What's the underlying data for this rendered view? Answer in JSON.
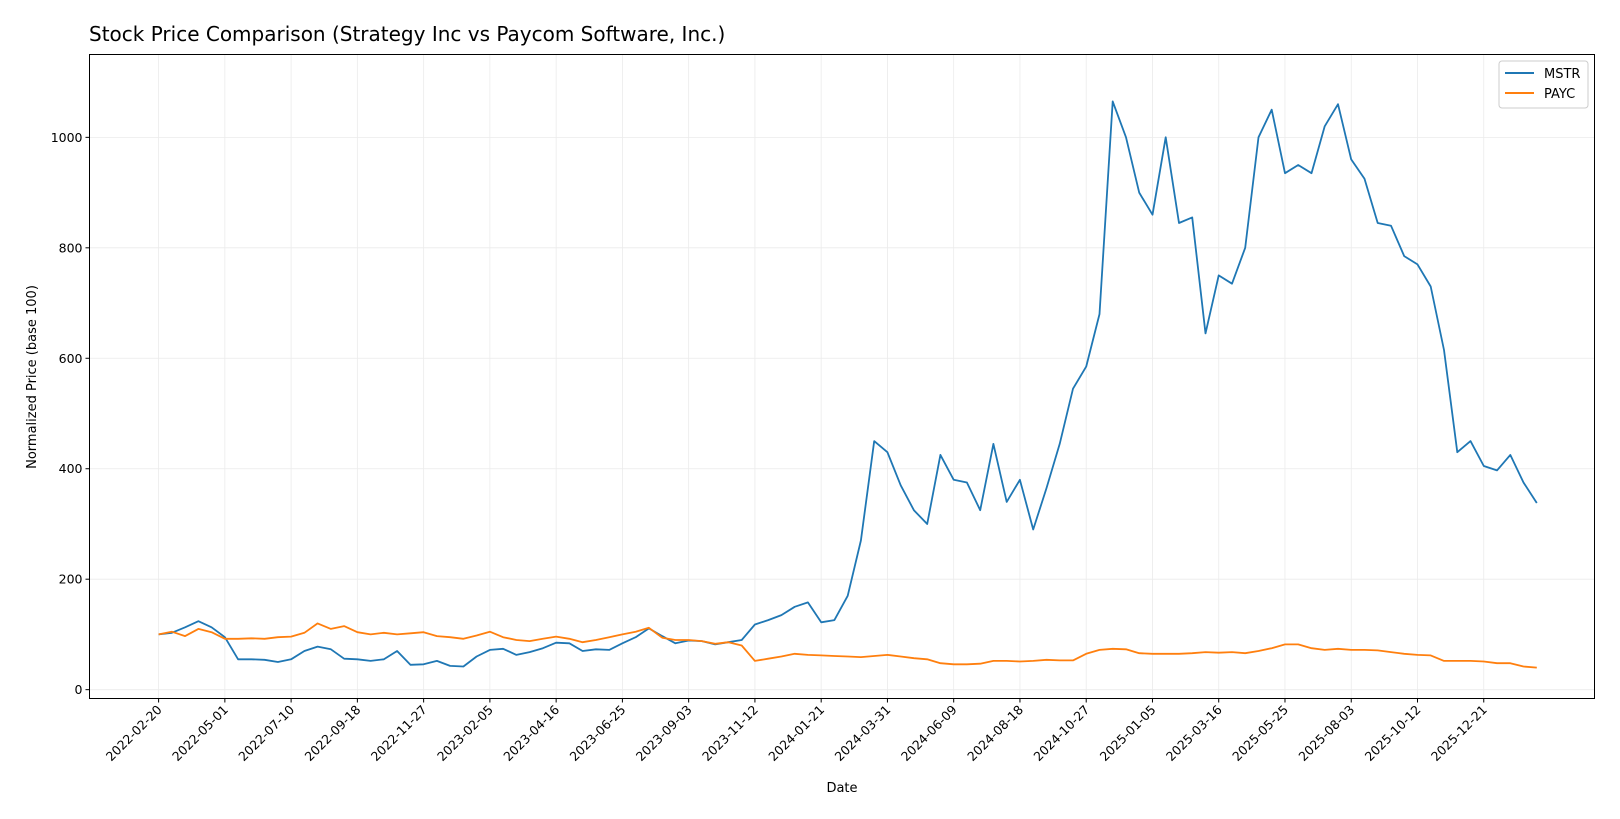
{
  "chart_data": {
    "type": "line",
    "title": "Stock Price Comparison (Strategy Inc vs Paycom Software, Inc.)",
    "xlabel": "Date",
    "ylabel": "Normalized Price (base 100)",
    "ylim": [
      -16,
      1150
    ],
    "yticks": [
      0,
      200,
      400,
      600,
      800,
      1000
    ],
    "xticks": [
      "2022-02-20",
      "2022-05-01",
      "2022-07-10",
      "2022-09-18",
      "2022-11-27",
      "2023-02-05",
      "2023-04-16",
      "2023-06-25",
      "2023-09-03",
      "2023-11-12",
      "2024-01-21",
      "2024-03-31",
      "2024-06-09",
      "2024-08-18",
      "2024-10-27",
      "2025-01-05",
      "2025-03-16",
      "2025-05-25",
      "2025-08-03",
      "2025-10-12",
      "2025-12-21"
    ],
    "grid": true,
    "legend_position": "top-right",
    "x": [
      "2022-02-20",
      "2022-03-06",
      "2022-03-20",
      "2022-04-03",
      "2022-04-17",
      "2022-05-01",
      "2022-05-15",
      "2022-05-29",
      "2022-06-12",
      "2022-06-26",
      "2022-07-10",
      "2022-07-24",
      "2022-08-07",
      "2022-08-21",
      "2022-09-04",
      "2022-09-18",
      "2022-10-02",
      "2022-10-16",
      "2022-10-30",
      "2022-11-13",
      "2022-11-27",
      "2022-12-11",
      "2022-12-25",
      "2023-01-08",
      "2023-01-22",
      "2023-02-05",
      "2023-02-19",
      "2023-03-05",
      "2023-03-19",
      "2023-04-02",
      "2023-04-16",
      "2023-04-30",
      "2023-05-14",
      "2023-05-28",
      "2023-06-11",
      "2023-06-25",
      "2023-07-09",
      "2023-07-23",
      "2023-08-06",
      "2023-08-20",
      "2023-09-03",
      "2023-09-17",
      "2023-10-01",
      "2023-10-15",
      "2023-10-29",
      "2023-11-12",
      "2023-11-26",
      "2023-12-10",
      "2023-12-24",
      "2024-01-07",
      "2024-01-21",
      "2024-02-04",
      "2024-02-18",
      "2024-03-03",
      "2024-03-17",
      "2024-03-31",
      "2024-04-14",
      "2024-04-28",
      "2024-05-12",
      "2024-05-26",
      "2024-06-09",
      "2024-06-23",
      "2024-07-07",
      "2024-07-21",
      "2024-08-04",
      "2024-08-18",
      "2024-09-01",
      "2024-09-15",
      "2024-09-29",
      "2024-10-13",
      "2024-10-27",
      "2024-11-10",
      "2024-11-24",
      "2024-12-08",
      "2024-12-22",
      "2025-01-05",
      "2025-01-19",
      "2025-02-02",
      "2025-02-16",
      "2025-03-02",
      "2025-03-16",
      "2025-03-30",
      "2025-04-13",
      "2025-04-27",
      "2025-05-11",
      "2025-05-25",
      "2025-06-08",
      "2025-06-22",
      "2025-07-06",
      "2025-07-20",
      "2025-08-03",
      "2025-08-17",
      "2025-08-31",
      "2025-09-14",
      "2025-09-28",
      "2025-10-12",
      "2025-10-26",
      "2025-11-09",
      "2025-11-23",
      "2025-12-07",
      "2025-12-21",
      "2026-01-04",
      "2026-01-18",
      "2026-02-01",
      "2026-02-15"
    ],
    "series": [
      {
        "name": "MSTR",
        "color": "#1f77b4",
        "values": [
          100,
          103,
          113,
          124,
          113,
          95,
          55,
          55,
          54,
          50,
          55,
          70,
          78,
          73,
          56,
          55,
          52,
          55,
          70,
          45,
          46,
          52,
          43,
          42,
          60,
          72,
          74,
          63,
          68,
          75,
          85,
          84,
          70,
          73,
          72,
          84,
          95,
          111,
          97,
          84,
          89,
          88,
          82,
          86,
          90,
          118,
          126,
          135,
          150,
          158,
          122,
          126,
          170,
          270,
          450,
          430,
          370,
          325,
          300,
          425,
          380,
          375,
          325,
          445,
          340,
          380,
          290,
          365,
          445,
          545,
          585,
          680,
          1065,
          1000,
          900,
          860,
          1000,
          845,
          855,
          645,
          750,
          735,
          800,
          1000,
          1050,
          935,
          950,
          935,
          1020,
          1060,
          960,
          925,
          845,
          840,
          785,
          770,
          730,
          615,
          430,
          450,
          405,
          397,
          425,
          375,
          338
        ]
      },
      {
        "name": "PAYC",
        "color": "#ff7f0e",
        "values": [
          100,
          105,
          97,
          110,
          104,
          92,
          92,
          93,
          92,
          95,
          96,
          103,
          120,
          110,
          115,
          104,
          100,
          103,
          100,
          102,
          104,
          97,
          95,
          92,
          98,
          105,
          95,
          90,
          88,
          92,
          96,
          92,
          86,
          90,
          95,
          100,
          105,
          112,
          94,
          90,
          90,
          88,
          83,
          86,
          80,
          52,
          56,
          60,
          65,
          63,
          62,
          61,
          60,
          59,
          61,
          63,
          60,
          57,
          55,
          48,
          46,
          46,
          47,
          52,
          52,
          51,
          52,
          54,
          53,
          53,
          65,
          72,
          74,
          73,
          66,
          65,
          65,
          65,
          66,
          68,
          67,
          68,
          66,
          70,
          75,
          82,
          82,
          75,
          72,
          74,
          72,
          72,
          71,
          68,
          65,
          63,
          62,
          52,
          52,
          52,
          51,
          48,
          48,
          42,
          40
        ]
      }
    ]
  }
}
